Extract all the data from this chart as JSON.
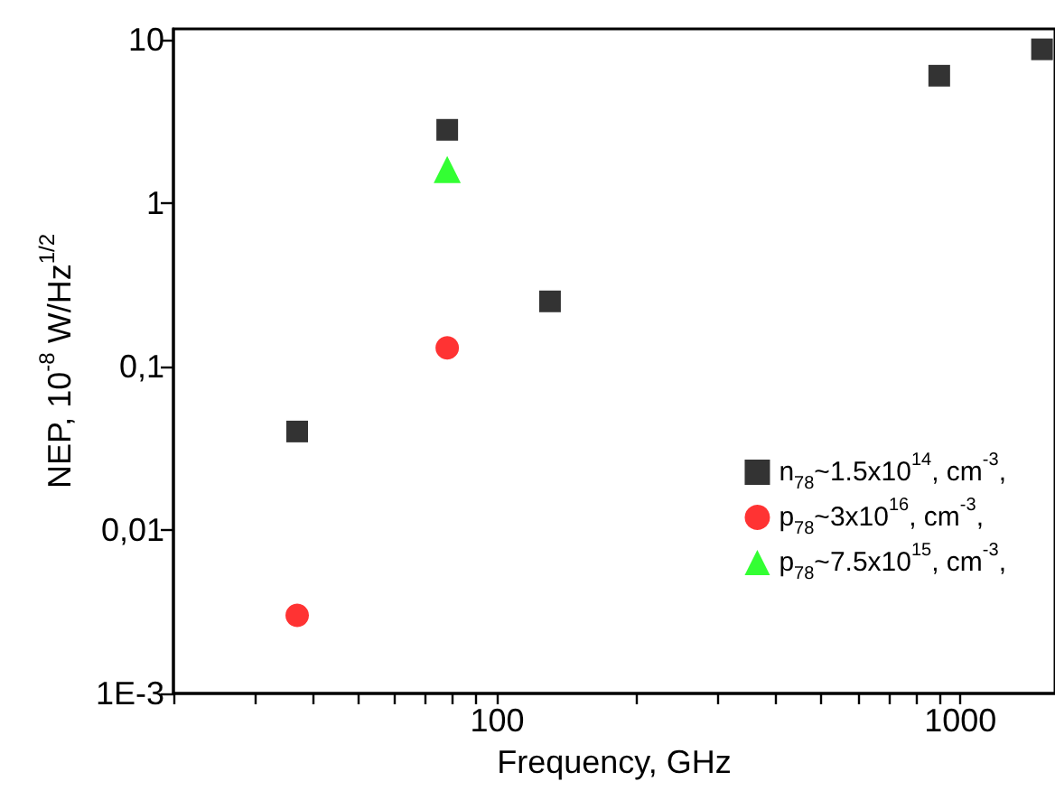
{
  "chart_data": {
    "type": "scatter",
    "xlabel": "Frequency, GHz",
    "ylabel": "NEP, 10$^{-8}$ W/Hz$^{1/2}$",
    "log": "xy",
    "xlim": [
      20,
      1600
    ],
    "xticks": [
      {
        "value": 20,
        "label": null
      },
      {
        "value": 30,
        "label": null
      },
      {
        "value": 40,
        "label": null
      },
      {
        "value": 50,
        "label": null
      },
      {
        "value": 60,
        "label": null
      },
      {
        "value": 70,
        "label": null
      },
      {
        "value": 80,
        "label": null
      },
      {
        "value": 90,
        "label": null
      },
      100,
      {
        "value": 200,
        "label": null
      },
      {
        "value": 300,
        "label": null
      },
      {
        "value": 400,
        "label": null
      },
      {
        "value": 500,
        "label": null
      },
      {
        "value": 600,
        "label": null
      },
      {
        "value": 700,
        "label": null
      },
      {
        "value": 800,
        "label": null
      },
      {
        "value": 900,
        "label": null
      },
      1000
    ],
    "ylim": [
      0.001,
      11.6
    ],
    "yticks": [
      {
        "value": 0.001,
        "label": "1E-3"
      },
      {
        "value": 0.01,
        "label": "0,01"
      },
      {
        "value": 0.1,
        "label": "0,1"
      },
      1,
      10
    ],
    "legend": "right",
    "grid": false,
    "series": [
      {
        "name": "n$_{78}$~1.5x10$^{14}$, cm$^{-3}$,",
        "color": "#000000",
        "marker": "square",
        "x": [
          37,
          78,
          130,
          900,
          1500
        ],
        "values": [
          0.04,
          2.8,
          0.25,
          6,
          8.7
        ]
      },
      {
        "name": "p$_{78}$~3x10$^{16}$, cm$^{-3}$,",
        "color": "#ff0000",
        "marker": "circle",
        "x": [
          37,
          78
        ],
        "values": [
          0.003,
          0.13
        ]
      },
      {
        "name": "p$_{78}$~7.5x10$^{15}$, cm$^{-3}$,",
        "color": "#00ff00",
        "marker": "triangle",
        "x": [
          78
        ],
        "values": [
          1.6
        ]
      }
    ]
  }
}
